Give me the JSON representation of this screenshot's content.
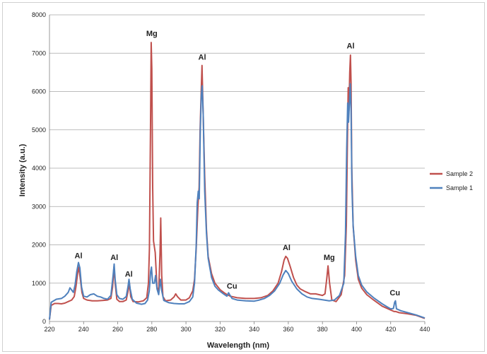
{
  "chart_data": {
    "type": "line",
    "title": "",
    "xlabel": "Wavelength (nm)",
    "ylabel": "Intensity (a.u.)",
    "xlim": [
      220,
      440
    ],
    "ylim": [
      0,
      8000
    ],
    "x_ticks": [
      220,
      240,
      260,
      280,
      300,
      320,
      340,
      360,
      380,
      400,
      420,
      440
    ],
    "y_ticks": [
      0,
      1000,
      2000,
      3000,
      4000,
      5000,
      6000,
      7000,
      8000
    ],
    "grid": "horizontal",
    "legend_position": "right",
    "series": [
      {
        "name": "Sample 2",
        "color": "#c0504d",
        "points": [
          [
            220,
            50
          ],
          [
            221,
            420
          ],
          [
            223,
            470
          ],
          [
            225,
            470
          ],
          [
            227,
            460
          ],
          [
            229,
            480
          ],
          [
            231,
            520
          ],
          [
            233,
            560
          ],
          [
            234.5,
            650
          ],
          [
            235.5,
            900
          ],
          [
            236.5,
            1250
          ],
          [
            237.2,
            1420
          ],
          [
            238,
            1150
          ],
          [
            239,
            760
          ],
          [
            240,
            600
          ],
          [
            242,
            560
          ],
          [
            245,
            540
          ],
          [
            248,
            540
          ],
          [
            251,
            550
          ],
          [
            254,
            560
          ],
          [
            256,
            600
          ],
          [
            257,
            900
          ],
          [
            257.8,
            1420
          ],
          [
            258.5,
            1000
          ],
          [
            259.5,
            580
          ],
          [
            261,
            520
          ],
          [
            263,
            520
          ],
          [
            265,
            560
          ],
          [
            266.3,
            850
          ],
          [
            266.8,
            1020
          ],
          [
            267.6,
            650
          ],
          [
            269,
            520
          ],
          [
            272,
            510
          ],
          [
            275,
            540
          ],
          [
            277,
            620
          ],
          [
            278,
            1000
          ],
          [
            278.6,
            1900
          ],
          [
            279.2,
            5000
          ],
          [
            279.6,
            7280
          ],
          [
            280.0,
            6600
          ],
          [
            280.5,
            3500
          ],
          [
            281,
            2100
          ],
          [
            282,
            1800
          ],
          [
            283,
            900
          ],
          [
            284,
            750
          ],
          [
            284.8,
            1800
          ],
          [
            285.2,
            2700
          ],
          [
            285.8,
            1200
          ],
          [
            286.5,
            650
          ],
          [
            288,
            540
          ],
          [
            291,
            560
          ],
          [
            293,
            640
          ],
          [
            294,
            720
          ],
          [
            295,
            650
          ],
          [
            297,
            560
          ],
          [
            300,
            560
          ],
          [
            302,
            620
          ],
          [
            304,
            800
          ],
          [
            305,
            1100
          ],
          [
            306,
            1900
          ],
          [
            307,
            3000
          ],
          [
            307.7,
            3500
          ],
          [
            308.3,
            5000
          ],
          [
            309,
            6100
          ],
          [
            309.4,
            6680
          ],
          [
            310,
            5600
          ],
          [
            311,
            3800
          ],
          [
            312,
            2400
          ],
          [
            313,
            1700
          ],
          [
            315,
            1250
          ],
          [
            317,
            1000
          ],
          [
            320,
            830
          ],
          [
            323,
            730
          ],
          [
            326,
            660
          ],
          [
            330,
            620
          ],
          [
            335,
            600
          ],
          [
            340,
            600
          ],
          [
            344,
            620
          ],
          [
            348,
            680
          ],
          [
            351,
            800
          ],
          [
            354,
            1000
          ],
          [
            356,
            1300
          ],
          [
            357.5,
            1600
          ],
          [
            358.5,
            1700
          ],
          [
            359.5,
            1650
          ],
          [
            361,
            1450
          ],
          [
            363,
            1150
          ],
          [
            365,
            950
          ],
          [
            367,
            850
          ],
          [
            370,
            780
          ],
          [
            373,
            720
          ],
          [
            376,
            720
          ],
          [
            378,
            700
          ],
          [
            380,
            680
          ],
          [
            381.5,
            720
          ],
          [
            382.5,
            1100
          ],
          [
            383.3,
            1450
          ],
          [
            384.2,
            1000
          ],
          [
            385.5,
            560
          ],
          [
            388,
            520
          ],
          [
            391,
            700
          ],
          [
            393,
            1200
          ],
          [
            394,
            2500
          ],
          [
            394.6,
            4500
          ],
          [
            395.1,
            6100
          ],
          [
            395.5,
            5500
          ],
          [
            396,
            6500
          ],
          [
            396.4,
            6950
          ],
          [
            396.8,
            6200
          ],
          [
            397.2,
            4000
          ],
          [
            398,
            2500
          ],
          [
            399.5,
            1600
          ],
          [
            401,
            1100
          ],
          [
            403,
            870
          ],
          [
            406,
            700
          ],
          [
            410,
            560
          ],
          [
            415,
            400
          ],
          [
            420,
            300
          ],
          [
            422,
            260
          ],
          [
            423,
            260
          ],
          [
            425,
            230
          ],
          [
            430,
            200
          ],
          [
            435,
            160
          ],
          [
            440,
            80
          ]
        ]
      },
      {
        "name": "Sample 1",
        "color": "#4f81bd",
        "points": [
          [
            220,
            50
          ],
          [
            221,
            500
          ],
          [
            224,
            580
          ],
          [
            227,
            600
          ],
          [
            229,
            660
          ],
          [
            231,
            760
          ],
          [
            232,
            880
          ],
          [
            233,
            820
          ],
          [
            234,
            760
          ],
          [
            235,
            950
          ],
          [
            236,
            1300
          ],
          [
            237,
            1540
          ],
          [
            237.8,
            1400
          ],
          [
            238.8,
            900
          ],
          [
            240,
            660
          ],
          [
            242,
            640
          ],
          [
            244,
            700
          ],
          [
            246,
            720
          ],
          [
            248,
            660
          ],
          [
            250,
            640
          ],
          [
            252,
            600
          ],
          [
            254,
            580
          ],
          [
            256,
            680
          ],
          [
            257.3,
            1200
          ],
          [
            257.9,
            1500
          ],
          [
            258.5,
            1100
          ],
          [
            259.5,
            700
          ],
          [
            261,
            600
          ],
          [
            263,
            580
          ],
          [
            265,
            650
          ],
          [
            266,
            900
          ],
          [
            266.6,
            1100
          ],
          [
            267.3,
            850
          ],
          [
            268.5,
            580
          ],
          [
            271,
            480
          ],
          [
            274,
            450
          ],
          [
            276,
            470
          ],
          [
            277.5,
            560
          ],
          [
            278.5,
            800
          ],
          [
            279.3,
            1300
          ],
          [
            279.8,
            1420
          ],
          [
            280.5,
            1000
          ],
          [
            281.5,
            1000
          ],
          [
            282.2,
            1200
          ],
          [
            283,
            850
          ],
          [
            284,
            700
          ],
          [
            285,
            1100
          ],
          [
            285.8,
            800
          ],
          [
            287,
            550
          ],
          [
            290,
            490
          ],
          [
            293,
            470
          ],
          [
            296,
            460
          ],
          [
            299,
            460
          ],
          [
            302,
            520
          ],
          [
            304,
            640
          ],
          [
            305,
            1000
          ],
          [
            306,
            2000
          ],
          [
            306.6,
            3100
          ],
          [
            307.2,
            3400
          ],
          [
            307.8,
            3200
          ],
          [
            308.4,
            5000
          ],
          [
            309,
            5900
          ],
          [
            309.5,
            6150
          ],
          [
            310.1,
            5400
          ],
          [
            311,
            3400
          ],
          [
            312,
            2300
          ],
          [
            313,
            1650
          ],
          [
            315,
            1150
          ],
          [
            317,
            920
          ],
          [
            319,
            820
          ],
          [
            322,
            720
          ],
          [
            324,
            660
          ],
          [
            325,
            750
          ],
          [
            325.6,
            700
          ],
          [
            327,
            600
          ],
          [
            330,
            560
          ],
          [
            335,
            540
          ],
          [
            340,
            530
          ],
          [
            343,
            560
          ],
          [
            346,
            600
          ],
          [
            349,
            680
          ],
          [
            352,
            800
          ],
          [
            355,
            1000
          ],
          [
            357,
            1220
          ],
          [
            358.5,
            1330
          ],
          [
            360,
            1250
          ],
          [
            362,
            1050
          ],
          [
            365,
            850
          ],
          [
            368,
            720
          ],
          [
            371,
            640
          ],
          [
            374,
            600
          ],
          [
            378,
            580
          ],
          [
            381,
            560
          ],
          [
            384,
            540
          ],
          [
            387,
            560
          ],
          [
            390,
            680
          ],
          [
            392.5,
            1000
          ],
          [
            393.5,
            2300
          ],
          [
            394.2,
            4500
          ],
          [
            394.8,
            5700
          ],
          [
            395.3,
            5200
          ],
          [
            395.9,
            5800
          ],
          [
            396.3,
            6200
          ],
          [
            396.8,
            5500
          ],
          [
            397.3,
            3500
          ],
          [
            398,
            2500
          ],
          [
            399.5,
            1700
          ],
          [
            401,
            1200
          ],
          [
            403,
            950
          ],
          [
            406,
            770
          ],
          [
            410,
            620
          ],
          [
            415,
            460
          ],
          [
            418,
            380
          ],
          [
            420,
            330
          ],
          [
            421.6,
            340
          ],
          [
            422.3,
            500
          ],
          [
            422.8,
            540
          ],
          [
            423.4,
            330
          ],
          [
            426,
            280
          ],
          [
            430,
            230
          ],
          [
            435,
            170
          ],
          [
            440,
            90
          ]
        ]
      }
    ],
    "annotations": [
      {
        "text": "Al",
        "x": 237,
        "y": 1650
      },
      {
        "text": "Al",
        "x": 258,
        "y": 1600
      },
      {
        "text": "Al",
        "x": 266.5,
        "y": 1170
      },
      {
        "text": "Mg",
        "x": 280,
        "y": 7450
      },
      {
        "text": "Al",
        "x": 309.5,
        "y": 6830
      },
      {
        "text": "Cu",
        "x": 327,
        "y": 860
      },
      {
        "text": "Al",
        "x": 359,
        "y": 1860
      },
      {
        "text": "Mg",
        "x": 384,
        "y": 1600
      },
      {
        "text": "Al",
        "x": 396.5,
        "y": 7120
      },
      {
        "text": "Cu",
        "x": 422.5,
        "y": 680
      }
    ]
  }
}
